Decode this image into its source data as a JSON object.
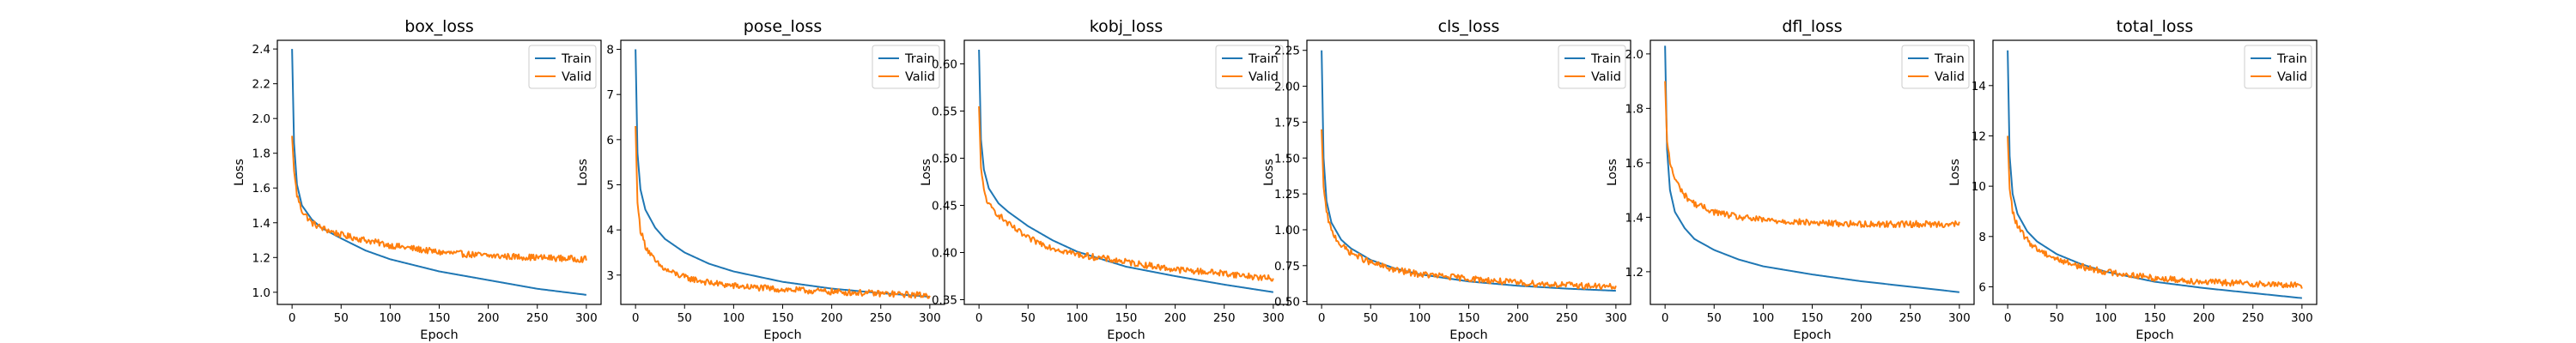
{
  "colors": {
    "train": "#1f77b4",
    "valid": "#ff7f0e",
    "axis": "#000000"
  },
  "chart_data": [
    {
      "type": "line",
      "title": "box_loss",
      "xlabel": "Epoch",
      "ylabel": "Loss",
      "xlim": [
        0,
        300
      ],
      "ylim": [
        0.93,
        2.45
      ],
      "xticks": [
        0,
        50,
        100,
        150,
        200,
        250,
        300
      ],
      "yticks": [
        "1.0",
        "1.2",
        "1.4",
        "1.6",
        "1.8",
        "2.0",
        "2.2",
        "2.4"
      ],
      "legend": "top-right",
      "grid": false,
      "series": [
        {
          "name": "Train",
          "color": "#1f77b4",
          "x": [
            0,
            2,
            5,
            10,
            20,
            30,
            50,
            75,
            100,
            150,
            200,
            250,
            300
          ],
          "y": [
            2.4,
            1.86,
            1.62,
            1.5,
            1.42,
            1.37,
            1.31,
            1.24,
            1.19,
            1.12,
            1.07,
            1.02,
            0.985
          ]
        },
        {
          "name": "Valid",
          "color": "#ff7f0e",
          "x": [
            0,
            2,
            5,
            10,
            20,
            30,
            50,
            75,
            100,
            150,
            200,
            250,
            300
          ],
          "y": [
            1.9,
            1.7,
            1.56,
            1.47,
            1.4,
            1.37,
            1.33,
            1.3,
            1.27,
            1.23,
            1.21,
            1.2,
            1.19
          ]
        }
      ]
    },
    {
      "type": "line",
      "title": "pose_loss",
      "xlabel": "Epoch",
      "ylabel": "Loss",
      "xlim": [
        0,
        300
      ],
      "ylim": [
        2.35,
        8.2
      ],
      "xticks": [
        0,
        50,
        100,
        150,
        200,
        250,
        300
      ],
      "yticks": [
        "3",
        "4",
        "5",
        "6",
        "7",
        "8"
      ],
      "legend": "top-right",
      "grid": false,
      "series": [
        {
          "name": "Train",
          "color": "#1f77b4",
          "x": [
            0,
            2,
            5,
            10,
            20,
            30,
            50,
            75,
            100,
            150,
            200,
            250,
            300
          ],
          "y": [
            8.0,
            5.7,
            4.9,
            4.45,
            4.05,
            3.8,
            3.5,
            3.25,
            3.08,
            2.85,
            2.7,
            2.6,
            2.52
          ]
        },
        {
          "name": "Valid",
          "color": "#ff7f0e",
          "x": [
            0,
            2,
            5,
            10,
            20,
            30,
            50,
            75,
            100,
            150,
            200,
            250,
            300
          ],
          "y": [
            6.3,
            4.6,
            4.0,
            3.65,
            3.3,
            3.12,
            2.95,
            2.83,
            2.76,
            2.68,
            2.63,
            2.59,
            2.55
          ]
        }
      ]
    },
    {
      "type": "line",
      "title": "kobj_loss",
      "xlabel": "Epoch",
      "ylabel": "Loss",
      "xlim": [
        0,
        300
      ],
      "ylim": [
        0.345,
        0.625
      ],
      "xticks": [
        0,
        50,
        100,
        150,
        200,
        250,
        300
      ],
      "yticks": [
        "0.35",
        "0.40",
        "0.45",
        "0.50",
        "0.55",
        "0.60"
      ],
      "legend": "top-right",
      "grid": false,
      "series": [
        {
          "name": "Train",
          "color": "#1f77b4",
          "x": [
            0,
            2,
            5,
            10,
            20,
            30,
            50,
            75,
            100,
            150,
            200,
            250,
            300
          ],
          "y": [
            0.615,
            0.52,
            0.488,
            0.468,
            0.452,
            0.443,
            0.428,
            0.413,
            0.401,
            0.385,
            0.375,
            0.366,
            0.358
          ]
        },
        {
          "name": "Valid",
          "color": "#ff7f0e",
          "x": [
            0,
            2,
            5,
            10,
            20,
            30,
            50,
            75,
            100,
            150,
            200,
            250,
            300
          ],
          "y": [
            0.555,
            0.49,
            0.465,
            0.45,
            0.44,
            0.43,
            0.415,
            0.405,
            0.398,
            0.39,
            0.382,
            0.378,
            0.372
          ]
        }
      ]
    },
    {
      "type": "line",
      "title": "cls_loss",
      "xlabel": "Epoch",
      "ylabel": "Loss",
      "xlim": [
        0,
        300
      ],
      "ylim": [
        0.48,
        2.32
      ],
      "xticks": [
        0,
        50,
        100,
        150,
        200,
        250,
        300
      ],
      "yticks": [
        "0.50",
        "0.75",
        "1.00",
        "1.25",
        "1.50",
        "1.75",
        "2.00",
        "2.25"
      ],
      "legend": "top-right",
      "grid": false,
      "series": [
        {
          "name": "Train",
          "color": "#1f77b4",
          "x": [
            0,
            2,
            5,
            10,
            20,
            30,
            50,
            75,
            100,
            150,
            200,
            250,
            300
          ],
          "y": [
            2.25,
            1.5,
            1.2,
            1.05,
            0.93,
            0.87,
            0.79,
            0.73,
            0.69,
            0.64,
            0.61,
            0.59,
            0.575
          ]
        },
        {
          "name": "Valid",
          "color": "#ff7f0e",
          "x": [
            0,
            2,
            5,
            10,
            20,
            30,
            50,
            75,
            100,
            150,
            200,
            250,
            300
          ],
          "y": [
            1.7,
            1.3,
            1.12,
            0.99,
            0.89,
            0.84,
            0.77,
            0.72,
            0.69,
            0.66,
            0.63,
            0.615,
            0.6
          ]
        }
      ]
    },
    {
      "type": "line",
      "title": "dfl_loss",
      "xlabel": "Epoch",
      "ylabel": "Loss",
      "xlim": [
        0,
        300
      ],
      "ylim": [
        1.08,
        2.05
      ],
      "xticks": [
        0,
        50,
        100,
        150,
        200,
        250,
        300
      ],
      "yticks": [
        "1.2",
        "1.4",
        "1.6",
        "1.8",
        "2.0"
      ],
      "legend": "top-right",
      "grid": false,
      "series": [
        {
          "name": "Train",
          "color": "#1f77b4",
          "x": [
            0,
            2,
            5,
            10,
            20,
            30,
            50,
            75,
            100,
            150,
            200,
            250,
            300
          ],
          "y": [
            2.03,
            1.65,
            1.5,
            1.42,
            1.36,
            1.32,
            1.28,
            1.245,
            1.22,
            1.19,
            1.165,
            1.145,
            1.125
          ]
        },
        {
          "name": "Valid",
          "color": "#ff7f0e",
          "x": [
            0,
            2,
            5,
            10,
            20,
            30,
            50,
            75,
            100,
            150,
            200,
            250,
            300
          ],
          "y": [
            1.9,
            1.68,
            1.6,
            1.54,
            1.48,
            1.45,
            1.42,
            1.4,
            1.39,
            1.38,
            1.375,
            1.375,
            1.375
          ]
        }
      ]
    },
    {
      "type": "line",
      "title": "total_loss",
      "xlabel": "Epoch",
      "ylabel": "Loss",
      "xlim": [
        0,
        300
      ],
      "ylim": [
        5.3,
        15.8
      ],
      "xticks": [
        0,
        50,
        100,
        150,
        200,
        250,
        300
      ],
      "yticks": [
        "6",
        "8",
        "10",
        "12",
        "14"
      ],
      "legend": "top-right",
      "grid": false,
      "series": [
        {
          "name": "Train",
          "color": "#1f77b4",
          "x": [
            0,
            2,
            5,
            10,
            20,
            30,
            50,
            75,
            100,
            150,
            200,
            250,
            300
          ],
          "y": [
            15.4,
            11.2,
            9.7,
            8.9,
            8.2,
            7.8,
            7.3,
            6.9,
            6.6,
            6.2,
            5.95,
            5.75,
            5.55
          ]
        },
        {
          "name": "Valid",
          "color": "#ff7f0e",
          "x": [
            0,
            2,
            5,
            10,
            20,
            30,
            50,
            75,
            100,
            150,
            200,
            250,
            300
          ],
          "y": [
            12.0,
            9.9,
            9.0,
            8.4,
            7.85,
            7.5,
            7.1,
            6.8,
            6.6,
            6.35,
            6.2,
            6.12,
            6.05
          ]
        }
      ]
    }
  ]
}
